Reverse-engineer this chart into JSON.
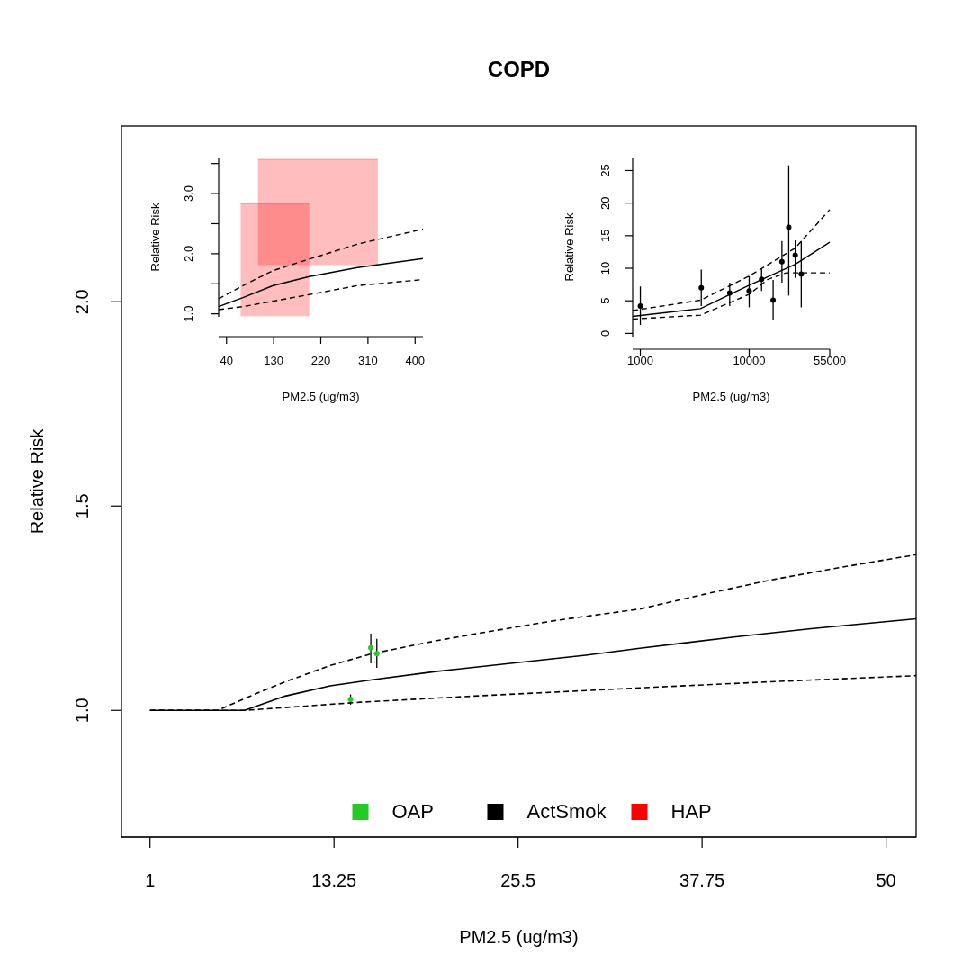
{
  "chart_data": [
    {
      "type": "line",
      "title": "COPD",
      "xlabel": "PM2.5 (ug/m3)",
      "ylabel": "Relative Risk",
      "xlim": [
        -0.9,
        52
      ],
      "ylim": [
        0.69,
        2.43
      ],
      "xticks": [
        1,
        13.25,
        25.5,
        37.75,
        50
      ],
      "yticks": [
        {
          "value": 1,
          "label": "1.0"
        },
        1.5,
        {
          "value": 2,
          "label": "2.0"
        }
      ],
      "legend": "bottom",
      "grid": false,
      "series": [
        {
          "color": "#000000",
          "line_style": "solid",
          "x": [
            1,
            7.3,
            10,
            13,
            15.8,
            20,
            25,
            30,
            33.6,
            40,
            45,
            52
          ],
          "values": [
            1,
            1,
            1.035,
            1.06,
            1.075,
            1.095,
            1.115,
            1.135,
            1.152,
            1.18,
            1.2,
            1.224
          ]
        },
        {
          "color": "#000000",
          "line_style": "dashed",
          "x": [
            1,
            5.5,
            8,
            10,
            13,
            15.8,
            20,
            23.1,
            28,
            33.6,
            38,
            42.3,
            47,
            52
          ],
          "values": [
            1,
            1,
            1.04,
            1.07,
            1.11,
            1.139,
            1.17,
            1.19,
            1.22,
            1.248,
            1.285,
            1.319,
            1.35,
            1.381
          ]
        },
        {
          "color": "#000000",
          "line_style": "dashed",
          "x": [
            1,
            7.3,
            15,
            23.1,
            33.6,
            42.3,
            52
          ],
          "values": [
            1,
            1,
            1.02,
            1.036,
            1.055,
            1.07,
            1.085
          ]
        },
        {
          "type": "scatter",
          "name": "OAP",
          "color": "#22cc22",
          "marker": "circle",
          "x": [
            15.7,
            16.1,
            14.35
          ],
          "values": [
            1.153,
            1.139,
            1.027
          ],
          "errors": [
            [
              1.115,
              1.188
            ],
            [
              1.104,
              1.175
            ],
            [
              1.014,
              1.039
            ]
          ]
        },
        {
          "type": "scatter",
          "name": "ActSmok",
          "color": "#000000",
          "marker": "circle"
        },
        {
          "type": "bar",
          "name": "HAP",
          "color": "#ff0000"
        }
      ]
    },
    {
      "type": "line",
      "xlabel": "PM2.5 (ug/m3)",
      "ylabel": "Relative Risk",
      "xlim": [
        25,
        415
      ],
      "ylim": [
        0.95,
        3.6
      ],
      "xticks": [
        40,
        130,
        220,
        310,
        400
      ],
      "yticks": [
        {
          "value": 1,
          "label": "1.0"
        },
        {
          "value": 1.5,
          "label": null
        },
        {
          "value": 2,
          "label": "2.0"
        },
        {
          "value": 2.5,
          "label": null
        },
        {
          "value": 3,
          "label": "3.0"
        },
        {
          "value": 3.5,
          "label": null
        }
      ],
      "series": [
        {
          "type": "bar",
          "color": "#ff0000",
          "x": [
            132.5,
            214.5
          ],
          "base": [
            0.96,
            1.81
          ],
          "values": [
            1.87,
            1.76
          ],
          "xerrors": [
            [
              67,
              198
            ],
            [
              100,
              329
            ]
          ]
        },
        {
          "color": "#000000",
          "line_style": "solid",
          "x": [
            25,
            71.5,
            129,
            198,
            290,
            415
          ],
          "values": [
            1.12,
            1.27,
            1.47,
            1.62,
            1.77,
            1.92
          ]
        },
        {
          "color": "#000000",
          "line_style": "dashed",
          "x": [
            25,
            71.5,
            129,
            198,
            290,
            415
          ],
          "values": [
            1.25,
            1.47,
            1.72,
            1.91,
            2.16,
            2.41
          ]
        },
        {
          "color": "#000000",
          "line_style": "dashed",
          "x": [
            25,
            71.5,
            198,
            290,
            415
          ],
          "values": [
            1.07,
            1.12,
            1.32,
            1.47,
            1.57
          ]
        }
      ]
    },
    {
      "type": "line",
      "xlabel": "PM2.5 (ug/m3)",
      "ylabel": "Relative Risk",
      "log": "x",
      "xlim": [
        850,
        55000
      ],
      "ylim": [
        -0.5,
        27
      ],
      "xticks": [
        1000,
        10000,
        55000
      ],
      "yticks": [
        0,
        5,
        10,
        15,
        20,
        25
      ],
      "series": [
        {
          "color": "#000000",
          "line_style": "solid",
          "x": [
            850,
            3570,
            10000,
            26500,
            55000
          ],
          "values": [
            2.6,
            3.8,
            7.4,
            10.6,
            14.0
          ]
        },
        {
          "color": "#000000",
          "line_style": "dashed",
          "x": [
            850,
            3570,
            10000,
            26500,
            55000
          ],
          "values": [
            3.5,
            5.1,
            8.8,
            13.1,
            19.0
          ]
        },
        {
          "color": "#000000",
          "line_style": "dashed",
          "x": [
            850,
            3570,
            10000,
            14900,
            21900,
            55000
          ],
          "values": [
            2.2,
            2.8,
            6.0,
            8.3,
            9.3,
            9.3
          ]
        },
        {
          "type": "scatter",
          "color": "#000000",
          "marker": "circle",
          "x": [
            1000,
            3630,
            6620,
            10000,
            13000,
            16600,
            20000,
            23100,
            26500,
            30100
          ],
          "values": [
            4.2,
            7.0,
            6.2,
            6.5,
            8.3,
            5.1,
            11.0,
            16.3,
            12.0,
            9.1
          ],
          "errors": [
            [
              1.3,
              7.2
            ],
            [
              4.2,
              9.8
            ],
            [
              4.2,
              7.8
            ],
            [
              4.0,
              8.8
            ],
            [
              6.5,
              10.0
            ],
            [
              2.1,
              8.2
            ],
            [
              7.8,
              14.2
            ],
            [
              5.8,
              25.8
            ],
            [
              8.5,
              14.3
            ],
            [
              4.0,
              14.2
            ]
          ]
        }
      ]
    }
  ]
}
